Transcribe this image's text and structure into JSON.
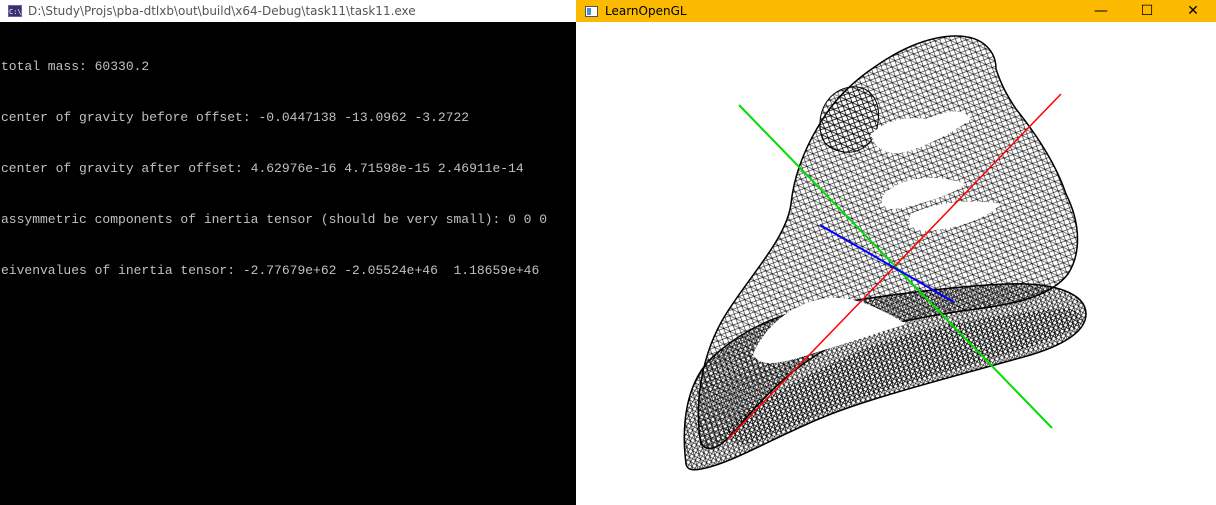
{
  "console": {
    "title": "D:\\Study\\Projs\\pba-dtlxb\\out\\build\\x64-Debug\\task11\\task11.exe",
    "icon": "C:\\",
    "lines": [
      "total mass: 60330.2",
      "center of gravity before offset: -0.0447138 -13.0962 -3.2722",
      "center of gravity after offset: 4.62976e-16 4.71598e-15 2.46911e-14",
      "assymmetric components of inertia tensor (should be very small): 0 0 0",
      "eivenvalues of inertia tensor: -2.77679e+62 -2.05524e+46  1.18659e+46"
    ]
  },
  "gl_window": {
    "title": "LearnOpenGL",
    "titlebar_color": "#fbb900",
    "minimize_glyph": "—",
    "maximize_glyph": "☐",
    "close_glyph": "✕",
    "axis_colors": {
      "x": "#ff0000",
      "y": "#00dd00",
      "z": "#0000ff"
    }
  }
}
